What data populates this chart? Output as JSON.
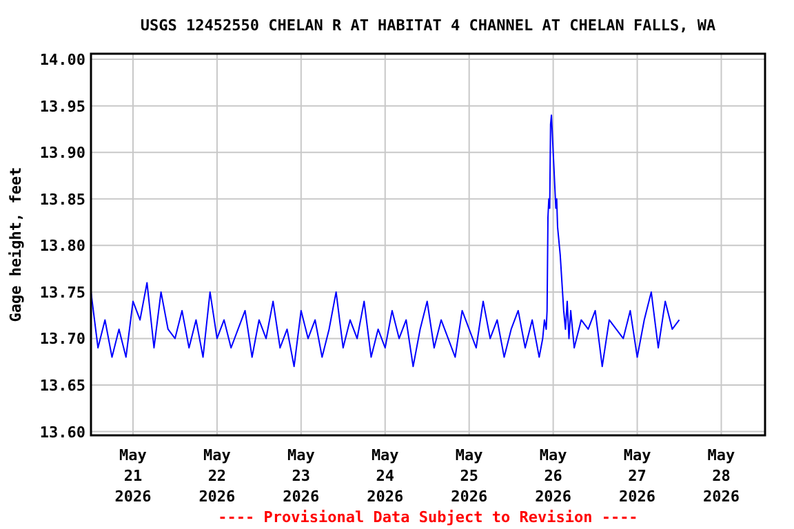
{
  "chart_data": {
    "type": "line",
    "title": "USGS 12452550 CHELAN R AT HABITAT 4 CHANNEL AT CHELAN FALLS, WA",
    "ylabel": "Gage height, feet",
    "annotations": [
      "---- Provisional Data Subject to Revision ----"
    ],
    "xlim": [
      "2026-05-20T12:00",
      "2026-05-28T12:30"
    ],
    "xticks": [
      {
        "value": "2026-05-21",
        "label": "May 21 2026"
      },
      {
        "value": "2026-05-22",
        "label": "May 22 2026"
      },
      {
        "value": "2026-05-23",
        "label": "May 23 2026"
      },
      {
        "value": "2026-05-24",
        "label": "May 24 2026"
      },
      {
        "value": "2026-05-25",
        "label": "May 25 2026"
      },
      {
        "value": "2026-05-26",
        "label": "May 26 2026"
      },
      {
        "value": "2026-05-27",
        "label": "May 27 2026"
      },
      {
        "value": "2026-05-28",
        "label": "May 28 2026"
      }
    ],
    "ylim": [
      13.596,
      14.006
    ],
    "yticks": [
      {
        "value": 13.6,
        "label": "13.60"
      },
      {
        "value": 13.65,
        "label": "13.65"
      },
      {
        "value": 13.7,
        "label": "13.70"
      },
      {
        "value": 13.75,
        "label": "13.75"
      },
      {
        "value": 13.8,
        "label": "13.80"
      },
      {
        "value": 13.85,
        "label": "13.85"
      },
      {
        "value": 13.9,
        "label": "13.90"
      },
      {
        "value": 13.95,
        "label": "13.95"
      },
      {
        "value": 14.0,
        "label": "14.00"
      }
    ],
    "grid": true,
    "series": [
      {
        "color": "#0000ff",
        "x": [
          "2026-05-20T12:00",
          "2026-05-20T14:00",
          "2026-05-20T16:00",
          "2026-05-20T18:00",
          "2026-05-20T20:00",
          "2026-05-20T22:00",
          "2026-05-21T00:00",
          "2026-05-21T02:00",
          "2026-05-21T04:00",
          "2026-05-21T06:00",
          "2026-05-21T08:00",
          "2026-05-21T10:00",
          "2026-05-21T12:00",
          "2026-05-21T14:00",
          "2026-05-21T16:00",
          "2026-05-21T18:00",
          "2026-05-21T20:00",
          "2026-05-21T22:00",
          "2026-05-22T00:00",
          "2026-05-22T02:00",
          "2026-05-22T04:00",
          "2026-05-22T06:00",
          "2026-05-22T08:00",
          "2026-05-22T10:00",
          "2026-05-22T12:00",
          "2026-05-22T14:00",
          "2026-05-22T16:00",
          "2026-05-22T18:00",
          "2026-05-22T20:00",
          "2026-05-22T22:00",
          "2026-05-23T00:00",
          "2026-05-23T02:00",
          "2026-05-23T04:00",
          "2026-05-23T06:00",
          "2026-05-23T08:00",
          "2026-05-23T10:00",
          "2026-05-23T12:00",
          "2026-05-23T14:00",
          "2026-05-23T16:00",
          "2026-05-23T18:00",
          "2026-05-23T20:00",
          "2026-05-23T22:00",
          "2026-05-24T00:00",
          "2026-05-24T02:00",
          "2026-05-24T04:00",
          "2026-05-24T06:00",
          "2026-05-24T08:00",
          "2026-05-24T10:00",
          "2026-05-24T12:00",
          "2026-05-24T14:00",
          "2026-05-24T16:00",
          "2026-05-24T18:00",
          "2026-05-24T20:00",
          "2026-05-24T22:00",
          "2026-05-25T00:00",
          "2026-05-25T02:00",
          "2026-05-25T04:00",
          "2026-05-25T06:00",
          "2026-05-25T08:00",
          "2026-05-25T10:00",
          "2026-05-25T12:00",
          "2026-05-25T14:00",
          "2026-05-25T16:00",
          "2026-05-25T18:00",
          "2026-05-25T20:00",
          "2026-05-25T21:00",
          "2026-05-25T21:30",
          "2026-05-25T22:00",
          "2026-05-25T22:15",
          "2026-05-25T22:30",
          "2026-05-25T22:45",
          "2026-05-25T23:00",
          "2026-05-25T23:15",
          "2026-05-25T23:30",
          "2026-05-25T23:45",
          "2026-05-26T00:00",
          "2026-05-26T00:15",
          "2026-05-26T00:30",
          "2026-05-26T00:45",
          "2026-05-26T01:00",
          "2026-05-26T01:15",
          "2026-05-26T01:30",
          "2026-05-26T02:00",
          "2026-05-26T02:30",
          "2026-05-26T03:00",
          "2026-05-26T03:30",
          "2026-05-26T04:00",
          "2026-05-26T04:30",
          "2026-05-26T05:00",
          "2026-05-26T06:00",
          "2026-05-26T08:00",
          "2026-05-26T10:00",
          "2026-05-26T12:00",
          "2026-05-26T14:00",
          "2026-05-26T16:00",
          "2026-05-26T18:00",
          "2026-05-26T20:00",
          "2026-05-26T22:00",
          "2026-05-27T00:00",
          "2026-05-27T02:00",
          "2026-05-27T04:00",
          "2026-05-27T06:00",
          "2026-05-27T08:00",
          "2026-05-27T10:00",
          "2026-05-27T12:00"
        ],
        "values": [
          13.75,
          13.69,
          13.72,
          13.68,
          13.71,
          13.68,
          13.74,
          13.72,
          13.76,
          13.69,
          13.75,
          13.71,
          13.7,
          13.73,
          13.69,
          13.72,
          13.68,
          13.75,
          13.7,
          13.72,
          13.69,
          13.71,
          13.73,
          13.68,
          13.72,
          13.7,
          13.74,
          13.69,
          13.71,
          13.67,
          13.73,
          13.7,
          13.72,
          13.68,
          13.71,
          13.75,
          13.69,
          13.72,
          13.7,
          13.74,
          13.68,
          13.71,
          13.69,
          13.73,
          13.7,
          13.72,
          13.67,
          13.71,
          13.74,
          13.69,
          13.72,
          13.7,
          13.68,
          13.73,
          13.71,
          13.69,
          13.74,
          13.7,
          13.72,
          13.68,
          13.71,
          13.73,
          13.69,
          13.72,
          13.68,
          13.7,
          13.72,
          13.71,
          13.73,
          13.83,
          13.85,
          13.84,
          13.93,
          13.94,
          13.92,
          13.9,
          13.88,
          13.86,
          13.84,
          13.85,
          13.82,
          13.81,
          13.79,
          13.76,
          13.73,
          13.71,
          13.74,
          13.7,
          13.73,
          13.69,
          13.72,
          13.71,
          13.73,
          13.67,
          13.72,
          13.71,
          13.7,
          13.73,
          13.68,
          13.72,
          13.75,
          13.69,
          13.74,
          13.71,
          13.72
        ]
      }
    ]
  }
}
